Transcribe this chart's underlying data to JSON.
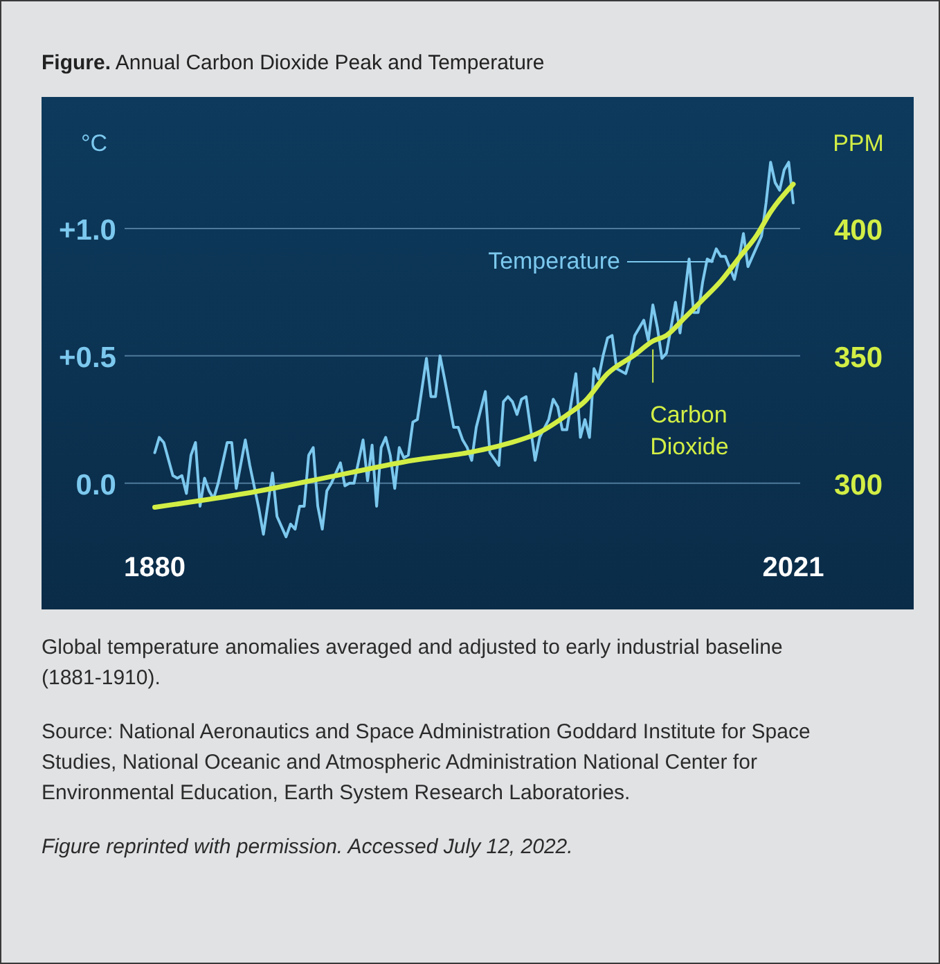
{
  "chart_data": {
    "type": "line",
    "title": "Figure. Annual Carbon Dioxide Peak and Temperature",
    "ylabel": "°C",
    "y2label": "PPM",
    "annotations": [
      "Global temperature anomalies averaged and adjusted to early industrial baseline (1881-1910).",
      "Source: National Aeronautics and Space Administration Goddard Institute for Space Studies, National Oceanic and Atmospheric Administration National Center for Environmental Education, Earth System Research Laboratories.",
      "Figure reprinted with permission. Accessed July 12, 2022."
    ],
    "xlim": [
      1855,
      2047.6
    ],
    "xticks": [
      1880,
      2021
    ],
    "ylim": [
      -0.495,
      1.516
    ],
    "yticks": [
      {
        "value": 0,
        "label": "0.0"
      },
      {
        "value": 0.5,
        "label": "+0.5"
      },
      {
        "value": 1,
        "label": "+1.0"
      }
    ],
    "y2lim": [
      250.5,
      451.6
    ],
    "y2ticks": [
      300,
      350,
      400
    ],
    "grid": "y",
    "marker": "none",
    "line_style": "solid",
    "series": [
      {
        "name": "Temperature",
        "color": "#7cc8ee",
        "x": [
          1880,
          1881,
          1882,
          1884,
          1885,
          1886,
          1887,
          1888,
          1889,
          1890,
          1891,
          1892,
          1893,
          1894,
          1896,
          1897,
          1898,
          1900,
          1901,
          1903,
          1904,
          1906,
          1907,
          1909,
          1910,
          1911,
          1912,
          1913,
          1914,
          1915,
          1916,
          1917,
          1918,
          1919,
          1921,
          1922,
          1923,
          1924,
          1926,
          1927,
          1928,
          1929,
          1930,
          1931,
          1932,
          1933,
          1934,
          1935,
          1936,
          1937,
          1938,
          1940,
          1941,
          1942,
          1943,
          1944,
          1946,
          1947,
          1948,
          1949,
          1950,
          1951,
          1953,
          1954,
          1956,
          1957,
          1958,
          1959,
          1960,
          1961,
          1962,
          1964,
          1965,
          1967,
          1968,
          1969,
          1970,
          1971,
          1973,
          1974,
          1975,
          1976,
          1977,
          1978,
          1979,
          1980,
          1981,
          1982,
          1984,
          1985,
          1986,
          1987,
          1988,
          1989,
          1990,
          1991,
          1992,
          1993,
          1994,
          1995,
          1996,
          1998,
          1999,
          2000,
          2001,
          2002,
          2003,
          2004,
          2005,
          2006,
          2008,
          2009,
          2010,
          2011,
          2012,
          2014,
          2015,
          2016,
          2017,
          2018,
          2019,
          2020,
          2021
        ],
        "values": [
          0.12,
          0.18,
          0.16,
          0.03,
          0.02,
          0.03,
          -0.04,
          0.11,
          0.16,
          -0.09,
          0.02,
          -0.03,
          -0.06,
          0,
          0.16,
          0.16,
          -0.02,
          0.17,
          0.07,
          -0.1,
          -0.2,
          0.04,
          -0.13,
          -0.21,
          -0.16,
          -0.18,
          -0.09,
          -0.09,
          0.11,
          0.14,
          -0.09,
          -0.18,
          -0.03,
          0,
          0.08,
          -0.01,
          0,
          0,
          0.17,
          0.01,
          0.15,
          -0.09,
          0.14,
          0.18,
          0.11,
          -0.02,
          0.14,
          0.1,
          0.11,
          0.24,
          0.25,
          0.49,
          0.34,
          0.34,
          0.5,
          0.41,
          0.22,
          0.22,
          0.17,
          0.14,
          0.09,
          0.22,
          0.36,
          0.12,
          0.07,
          0.32,
          0.34,
          0.32,
          0.27,
          0.33,
          0.34,
          0.09,
          0.18,
          0.25,
          0.33,
          0.3,
          0.21,
          0.21,
          0.43,
          0.18,
          0.25,
          0.18,
          0.45,
          0.41,
          0.5,
          0.57,
          0.58,
          0.45,
          0.43,
          0.49,
          0.58,
          0.61,
          0.64,
          0.56,
          0.7,
          0.61,
          0.49,
          0.51,
          0.61,
          0.71,
          0.59,
          0.88,
          0.67,
          0.67,
          0.79,
          0.88,
          0.87,
          0.92,
          0.89,
          0.89,
          0.8,
          0.88,
          0.98,
          0.85,
          0.89,
          0.97,
          1.1,
          1.26,
          1.18,
          1.15,
          1.23,
          1.26,
          1.1
        ]
      },
      {
        "name": "Carbon Dioxide",
        "color": "#d2ee45",
        "axis": "y2",
        "x": [
          1880,
          1900,
          1920,
          1937,
          1950,
          1958,
          1965,
          1971,
          1975,
          1980,
          1986,
          1990,
          1993,
          1997,
          2001,
          2005,
          2009,
          2013,
          2016,
          2021
        ],
        "values": [
          290.6,
          296,
          303,
          309,
          312.3,
          315.6,
          320,
          326.8,
          332.2,
          343,
          350.4,
          355.8,
          358,
          364.9,
          372,
          379.3,
          388.4,
          397.5,
          406.5,
          417.4
        ]
      }
    ]
  }
}
